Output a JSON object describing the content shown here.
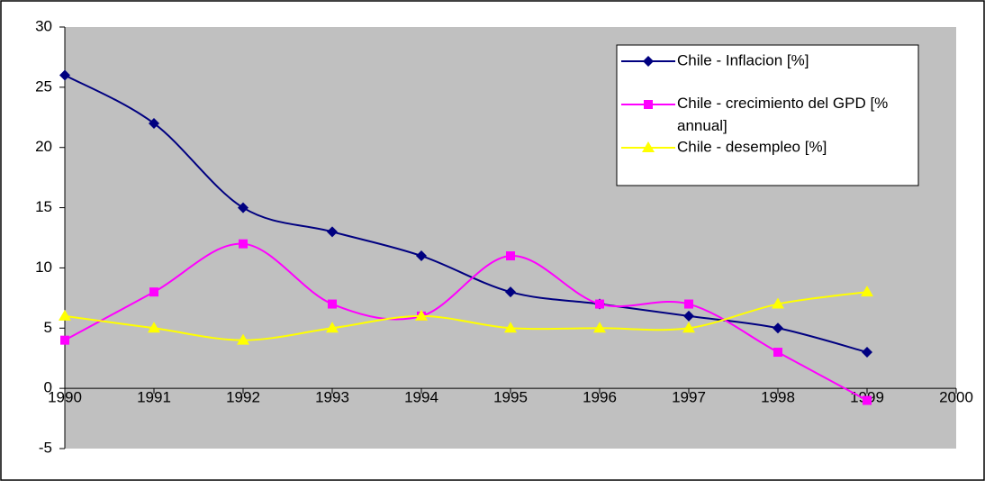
{
  "chart_data": {
    "type": "line",
    "x": [
      1990,
      1991,
      1992,
      1993,
      1994,
      1995,
      1996,
      1997,
      1998,
      1999
    ],
    "series": [
      {
        "name": "Chile - Inflacion [%]",
        "color": "#000080",
        "marker": "diamond",
        "values": [
          26,
          22,
          15,
          13,
          11,
          8,
          7,
          6,
          5,
          3
        ]
      },
      {
        "name": "Chile - crecimiento del GPD [% annual]",
        "color": "#ff00ff",
        "marker": "square",
        "values": [
          4,
          8,
          12,
          7,
          6,
          11,
          7,
          7,
          3,
          -1
        ]
      },
      {
        "name": "Chile - desempleo [%]",
        "color": "#ffff00",
        "marker": "triangle",
        "values": [
          6,
          5,
          4,
          5,
          6,
          5,
          5,
          5,
          7,
          8
        ]
      }
    ],
    "xlim": [
      1990,
      2000
    ],
    "xticks": [
      1990,
      1991,
      1992,
      1993,
      1994,
      1995,
      1996,
      1997,
      1998,
      1999,
      2000
    ],
    "ylim": [
      -5,
      30
    ],
    "yticks": [
      -5,
      0,
      5,
      10,
      15,
      20,
      25,
      30
    ],
    "smooth": true,
    "legend": "upper right"
  }
}
